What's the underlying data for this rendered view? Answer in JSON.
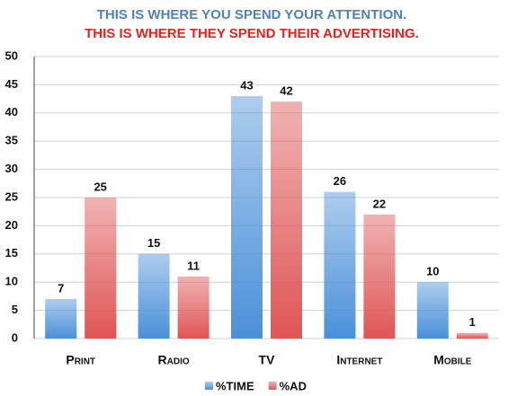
{
  "chart_data": {
    "type": "bar",
    "title": "THIS IS WHERE YOU SPEND YOUR ATTENTION.",
    "subtitle": "THIS IS WHERE THEY SPEND THEIR ADVERTISING.",
    "categories": [
      "Print",
      "Radio",
      "TV",
      "Internet",
      "Mobile"
    ],
    "series": [
      {
        "name": "%TIME",
        "color": "#4a90d9",
        "values": [
          7,
          15,
          43,
          26,
          10
        ]
      },
      {
        "name": "%AD",
        "color": "#e05555",
        "values": [
          25,
          11,
          42,
          22,
          1
        ]
      }
    ],
    "ylim": [
      0,
      50
    ],
    "yticks": [
      0,
      5,
      10,
      15,
      20,
      25,
      30,
      35,
      40,
      45,
      50
    ],
    "grid": true,
    "legend": "bottom"
  }
}
